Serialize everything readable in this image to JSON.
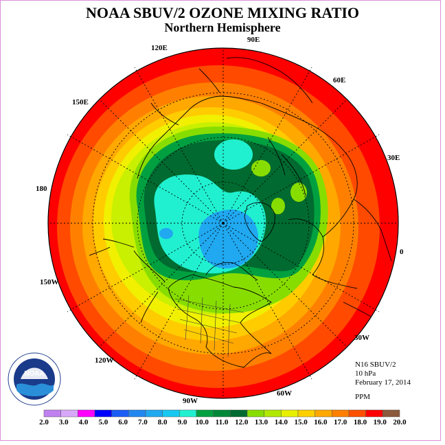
{
  "title": "NOAA SBUV/2 OZONE MIXING RATIO",
  "subtitle": "Northern Hemisphere",
  "info": {
    "instrument": "N16 SBUV/2",
    "level": "10 hPa",
    "date": "February 17, 2014",
    "units": "PPM"
  },
  "longitude_labels": {
    "e120": "120E",
    "e90": "90E",
    "e60": "60E",
    "e30": "30E",
    "e150": "150E",
    "d180": "180",
    "zero": "0",
    "w150": "150W",
    "w120": "120W",
    "w90": "90W",
    "w60": "60W",
    "w30": "30W"
  },
  "colorbar": {
    "ticks": [
      "2.0",
      "3.0",
      "4.0",
      "5.0",
      "6.0",
      "7.0",
      "8.0",
      "9.0",
      "10.0",
      "11.0",
      "12.0",
      "13.0",
      "14.0",
      "15.0",
      "16.0",
      "17.0",
      "18.0",
      "19.0",
      "20.0"
    ],
    "colors": [
      "#c080f0",
      "#d8a8f8",
      "#ff00ff",
      "#0000ff",
      "#1a5ef5",
      "#2288f0",
      "#20a8f0",
      "#18c8f0",
      "#20f0d0",
      "#00a040",
      "#008838",
      "#006a30",
      "#88dd00",
      "#b0e800",
      "#e8f000",
      "#ffd000",
      "#ffa800",
      "#ff8000",
      "#ff5000",
      "#ff0000",
      "#8b5a3c"
    ]
  },
  "contour_colors": {
    "red": "#ff0000",
    "red_orange": "#ff4a00",
    "orange": "#ff8000",
    "light_orange": "#ffa800",
    "gold": "#ffcc00",
    "yellow": "#f0f000",
    "yellow_green": "#c8f000",
    "light_green": "#88dd00",
    "green": "#00a040",
    "dark_green": "#006a30",
    "cyan": "#20f0d0",
    "light_blue": "#20a8f0",
    "blue": "#1a5ef5"
  },
  "logo": {
    "text": "NOAA",
    "ring_text": "NATIONAL OCEANIC AND ATMOSPHERIC ADMINISTRATION · U.S. DEPARTMENT OF COMMERCE"
  }
}
